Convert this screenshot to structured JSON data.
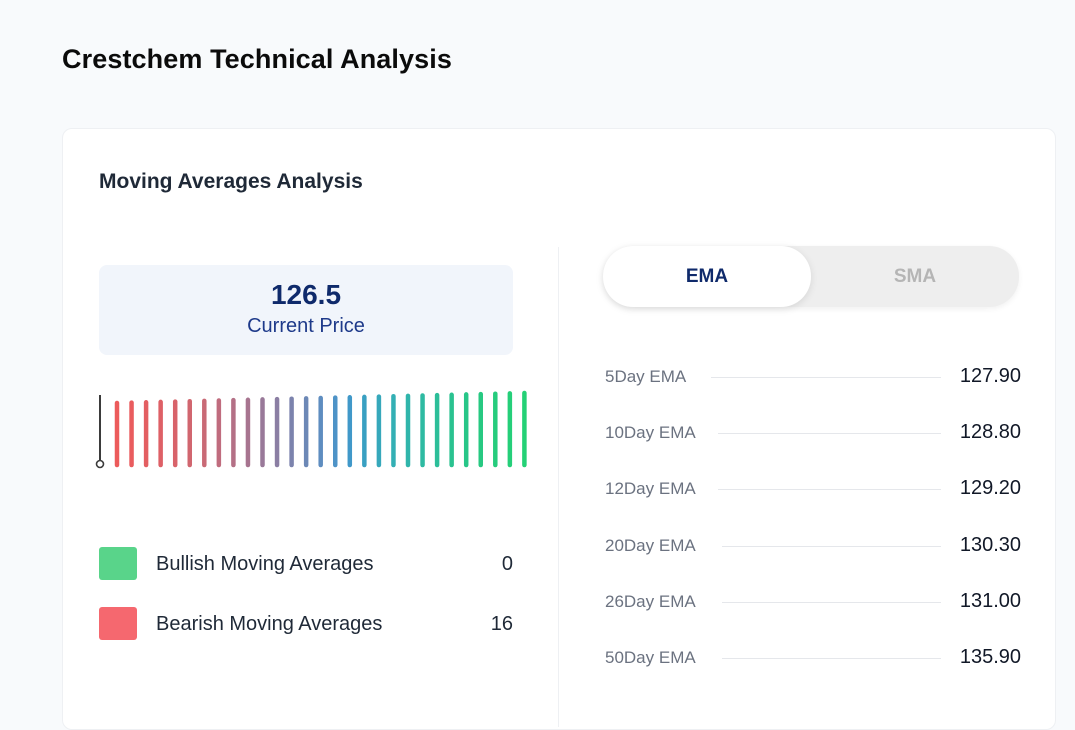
{
  "page": {
    "title": "Crestchem Technical Analysis"
  },
  "card": {
    "title": "Moving Averages Analysis"
  },
  "price": {
    "value": "126.5",
    "label": "Current Price"
  },
  "gauge": {
    "bar_count": 29,
    "needle_index": 0,
    "bar_colors": [
      "#ec5b5b",
      "#e95c5e",
      "#e35f62",
      "#de6066",
      "#d8636a",
      "#d1666f",
      "#c96a76",
      "#c06c7e",
      "#b47086",
      "#a7748f",
      "#997999",
      "#8b7ea3",
      "#7c83ad",
      "#6c88b6",
      "#5e8dc0",
      "#4e93c7",
      "#4098c9",
      "#39a0c2",
      "#36a8bb",
      "#33afb4",
      "#30b5ab",
      "#2ebaa2",
      "#2cbe99",
      "#2ac290",
      "#28c688",
      "#27c982",
      "#26cc7d",
      "#25cf79",
      "#24d176"
    ]
  },
  "legend": [
    {
      "label": "Bullish Moving Averages",
      "count": "0",
      "color": "#59d48a"
    },
    {
      "label": "Bearish Moving Averages",
      "count": "16",
      "color": "#f5686f"
    }
  ],
  "toggle": {
    "active": "EMA",
    "inactive": "SMA"
  },
  "ema_rows": [
    {
      "label": "5Day EMA",
      "value": "127.90"
    },
    {
      "label": "10Day EMA",
      "value": "128.80"
    },
    {
      "label": "12Day EMA",
      "value": "129.20"
    },
    {
      "label": "20Day EMA",
      "value": "130.30"
    },
    {
      "label": "26Day EMA",
      "value": "131.00"
    },
    {
      "label": "50Day EMA",
      "value": "135.90"
    }
  ]
}
